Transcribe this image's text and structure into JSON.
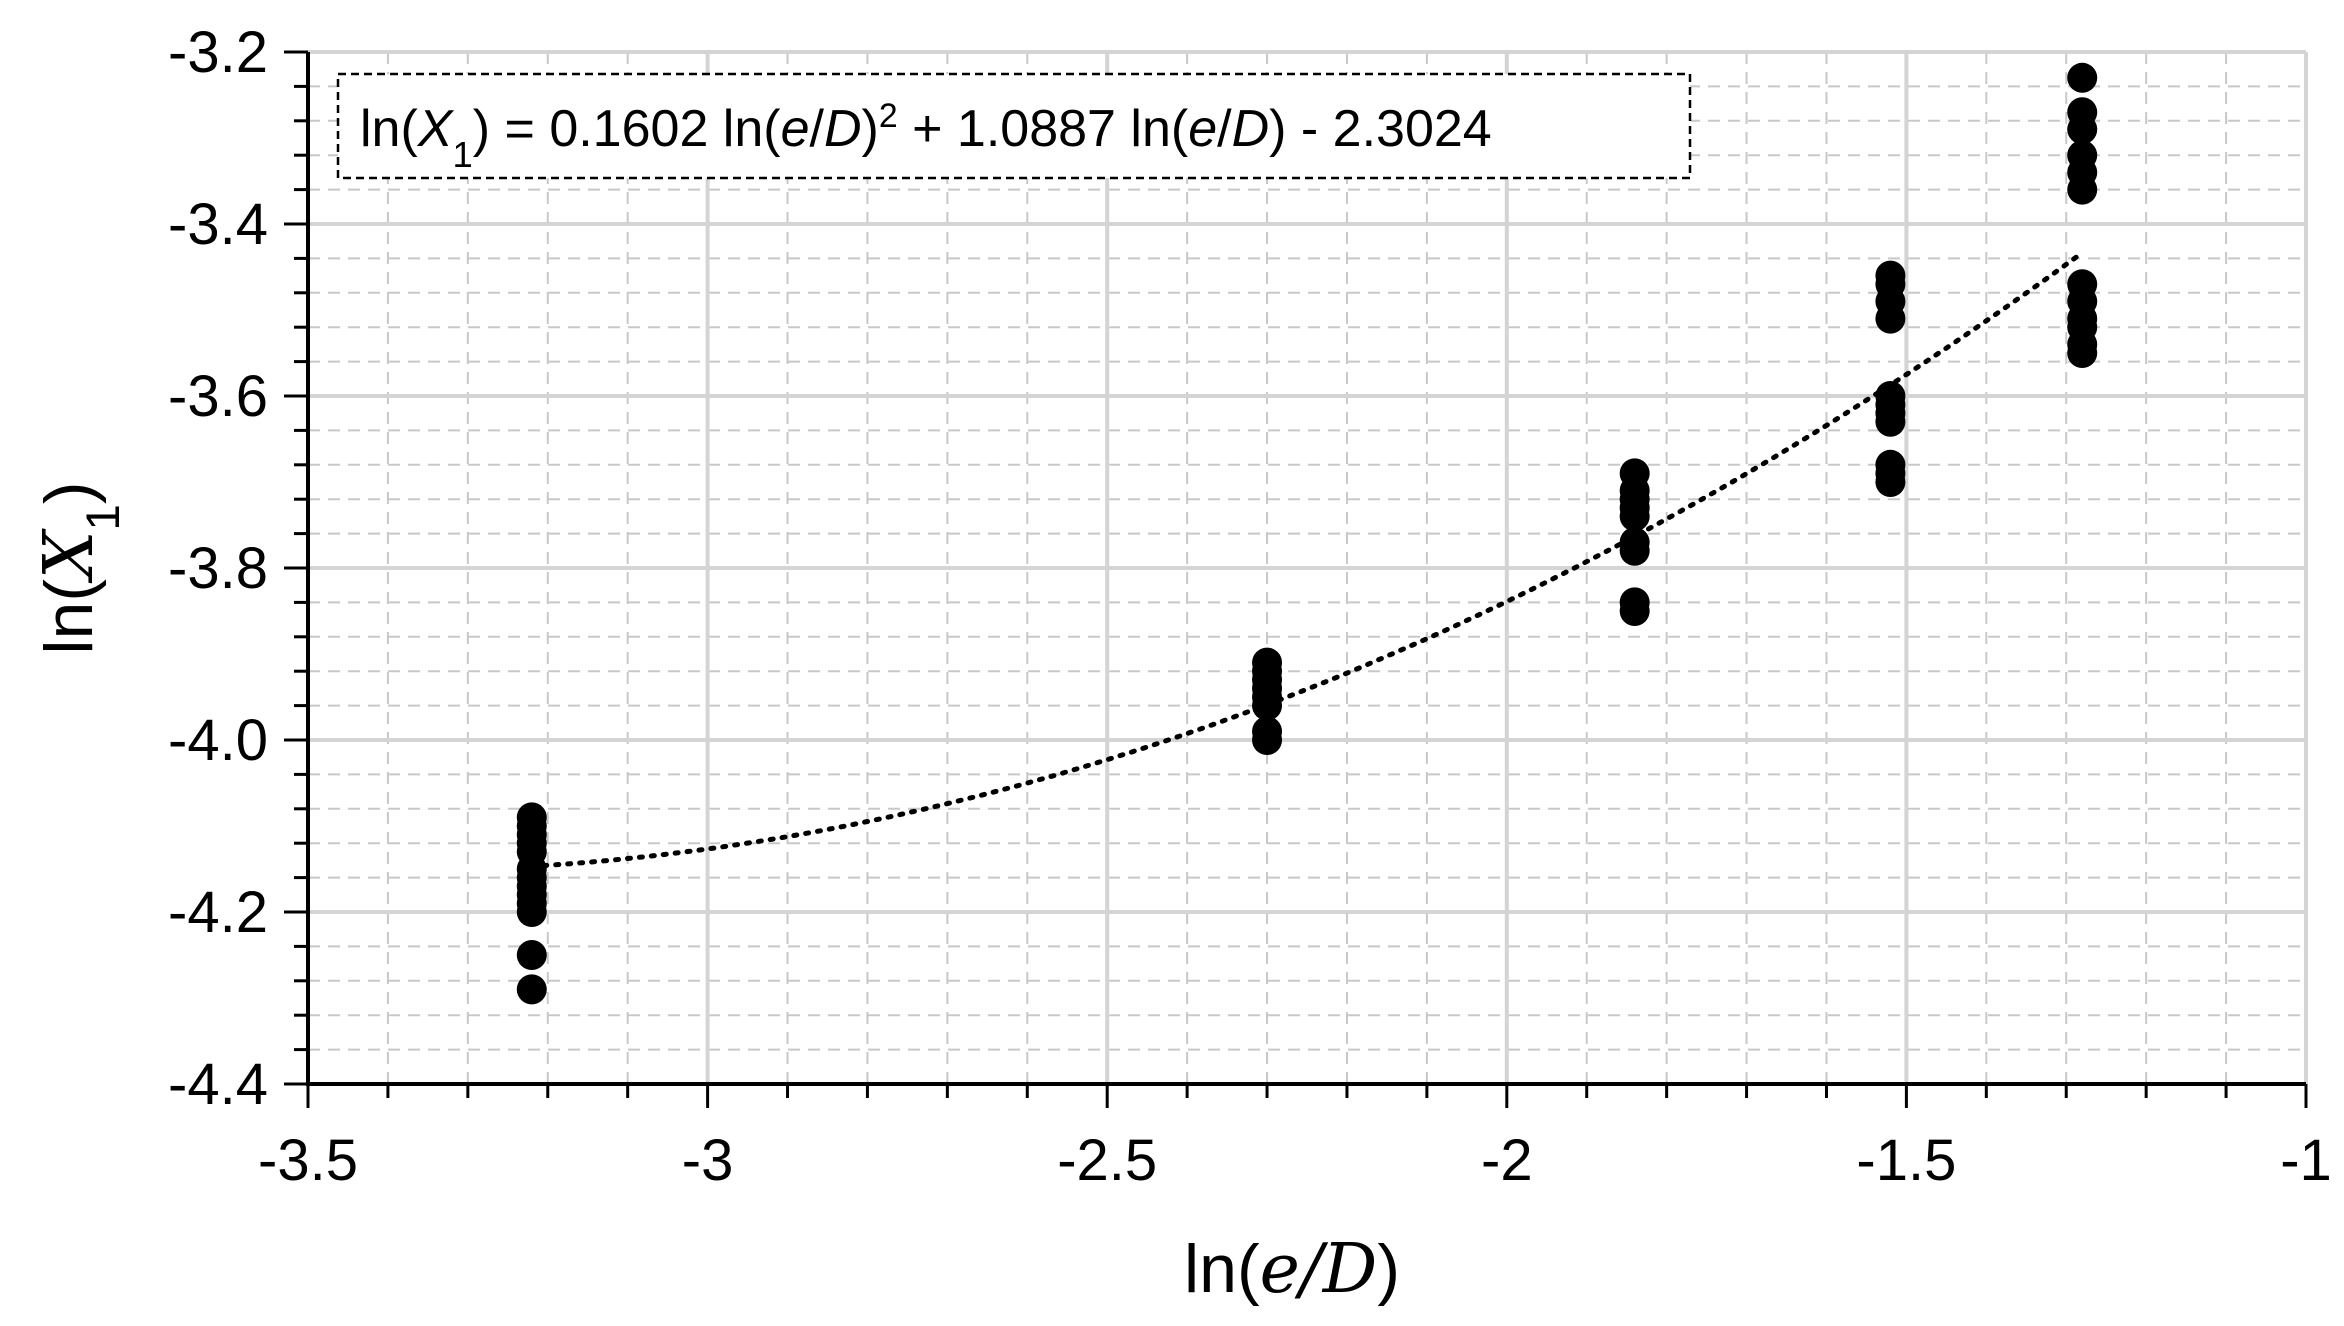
{
  "chart_data": {
    "type": "scatter",
    "title": "",
    "xlabel": "ln(e/D)",
    "ylabel": "ln(X1)",
    "xlim": [
      -3.5,
      -1
    ],
    "ylim": [
      -4.4,
      -3.2
    ],
    "x_ticks": [
      -3.5,
      -3,
      -2.5,
      -2,
      -1.5,
      -1
    ],
    "x_tick_labels": [
      "-3.5",
      "-3",
      "-2.5",
      "-2",
      "-1.5",
      "-1"
    ],
    "y_ticks": [
      -3.2,
      -3.4,
      -3.6,
      -3.8,
      -4.0,
      -4.2,
      -4.4
    ],
    "y_tick_labels": [
      "-3.2",
      "-3.4",
      "-3.6",
      "-3.8",
      "-4.0",
      "-4.2",
      "-4.4"
    ],
    "grid": true,
    "legend": "none",
    "series": [
      {
        "marker": "filled-circle",
        "color": "#000000",
        "points": [
          [
            -3.22,
            -4.09
          ],
          [
            -3.22,
            -4.1
          ],
          [
            -3.22,
            -4.11
          ],
          [
            -3.22,
            -4.12
          ],
          [
            -3.22,
            -4.13
          ],
          [
            -3.22,
            -4.15
          ],
          [
            -3.22,
            -4.16
          ],
          [
            -3.22,
            -4.17
          ],
          [
            -3.22,
            -4.18
          ],
          [
            -3.22,
            -4.19
          ],
          [
            -3.22,
            -4.2
          ],
          [
            -3.22,
            -4.25
          ],
          [
            -3.22,
            -4.29
          ],
          [
            -2.3,
            -3.91
          ],
          [
            -2.3,
            -3.92
          ],
          [
            -2.3,
            -3.93
          ],
          [
            -2.3,
            -3.94
          ],
          [
            -2.3,
            -3.95
          ],
          [
            -2.3,
            -3.96
          ],
          [
            -2.3,
            -3.99
          ],
          [
            -2.3,
            -4.0
          ],
          [
            -1.84,
            -3.69
          ],
          [
            -1.84,
            -3.71
          ],
          [
            -1.84,
            -3.72
          ],
          [
            -1.84,
            -3.73
          ],
          [
            -1.84,
            -3.74
          ],
          [
            -1.84,
            -3.77
          ],
          [
            -1.84,
            -3.78
          ],
          [
            -1.84,
            -3.84
          ],
          [
            -1.84,
            -3.85
          ],
          [
            -1.52,
            -3.46
          ],
          [
            -1.52,
            -3.47
          ],
          [
            -1.52,
            -3.49
          ],
          [
            -1.52,
            -3.51
          ],
          [
            -1.52,
            -3.6
          ],
          [
            -1.52,
            -3.61
          ],
          [
            -1.52,
            -3.62
          ],
          [
            -1.52,
            -3.63
          ],
          [
            -1.52,
            -3.68
          ],
          [
            -1.52,
            -3.69
          ],
          [
            -1.52,
            -3.7
          ],
          [
            -1.28,
            -3.23
          ],
          [
            -1.28,
            -3.27
          ],
          [
            -1.28,
            -3.29
          ],
          [
            -1.28,
            -3.32
          ],
          [
            -1.28,
            -3.34
          ],
          [
            -1.28,
            -3.36
          ],
          [
            -1.28,
            -3.47
          ],
          [
            -1.28,
            -3.49
          ],
          [
            -1.28,
            -3.51
          ],
          [
            -1.28,
            -3.52
          ],
          [
            -1.28,
            -3.54
          ],
          [
            -1.28,
            -3.55
          ]
        ]
      }
    ],
    "trendline": {
      "type": "polynomial",
      "order": 2,
      "style": "dotted",
      "color": "#000000",
      "coefficients": {
        "a": 0.1602,
        "b": 1.0887,
        "c": -2.3024
      },
      "x_range": [
        -3.22,
        -1.28
      ]
    },
    "annotation": {
      "parts": [
        {
          "t": "ln(",
          "i": false
        },
        {
          "t": "X",
          "i": true
        },
        {
          "t": "1",
          "i": false,
          "sub": true
        },
        {
          "t": ") = 0.1602 ln(",
          "i": false
        },
        {
          "t": "e",
          "i": true
        },
        {
          "t": "/",
          "i": false
        },
        {
          "t": "D",
          "i": true
        },
        {
          "t": ")",
          "i": false
        },
        {
          "t": "2",
          "i": false,
          "sup": true
        },
        {
          "t": " + 1.0887 ln(",
          "i": false
        },
        {
          "t": "e",
          "i": true
        },
        {
          "t": "/",
          "i": false
        },
        {
          "t": "D",
          "i": true
        },
        {
          "t": ") - 2.3024",
          "i": false
        }
      ]
    },
    "xlabel_parts": [
      {
        "t": "ln(",
        "i": false
      },
      {
        "t": "e",
        "i": true
      },
      {
        "t": "/",
        "i": true
      },
      {
        "t": "D",
        "i": true
      },
      {
        "t": ")",
        "i": false
      }
    ],
    "ylabel_parts": [
      {
        "t": "ln(",
        "i": false
      },
      {
        "t": "X",
        "i": true
      },
      {
        "t": "1",
        "i": false,
        "sub": true
      },
      {
        "t": ")",
        "i": false
      }
    ]
  }
}
